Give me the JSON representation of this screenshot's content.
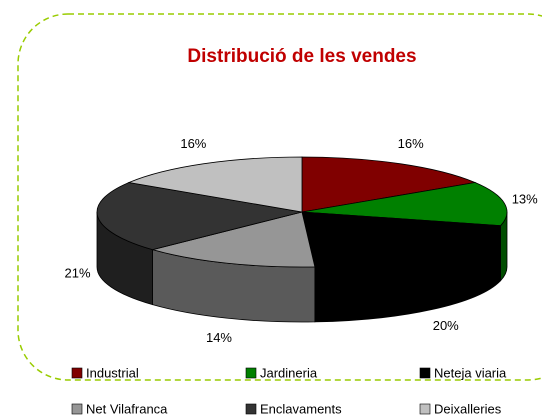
{
  "chart_data": {
    "type": "pie3d",
    "title": "Distribució de les vendes",
    "categories": [
      "Industrial",
      "Jardineria",
      "Neteja viaria",
      "Net Vilafranca",
      "Enclavaments",
      "Deixalleries"
    ],
    "values": [
      16,
      13,
      20,
      14,
      21,
      16
    ],
    "value_labels": [
      "16%",
      "13%",
      "20%",
      "14%",
      "21%",
      "16%"
    ],
    "colors": [
      "#800000",
      "#008000",
      "#000000",
      "#969696",
      "#333333",
      "#c0c0c0"
    ],
    "legend": "bottom"
  }
}
